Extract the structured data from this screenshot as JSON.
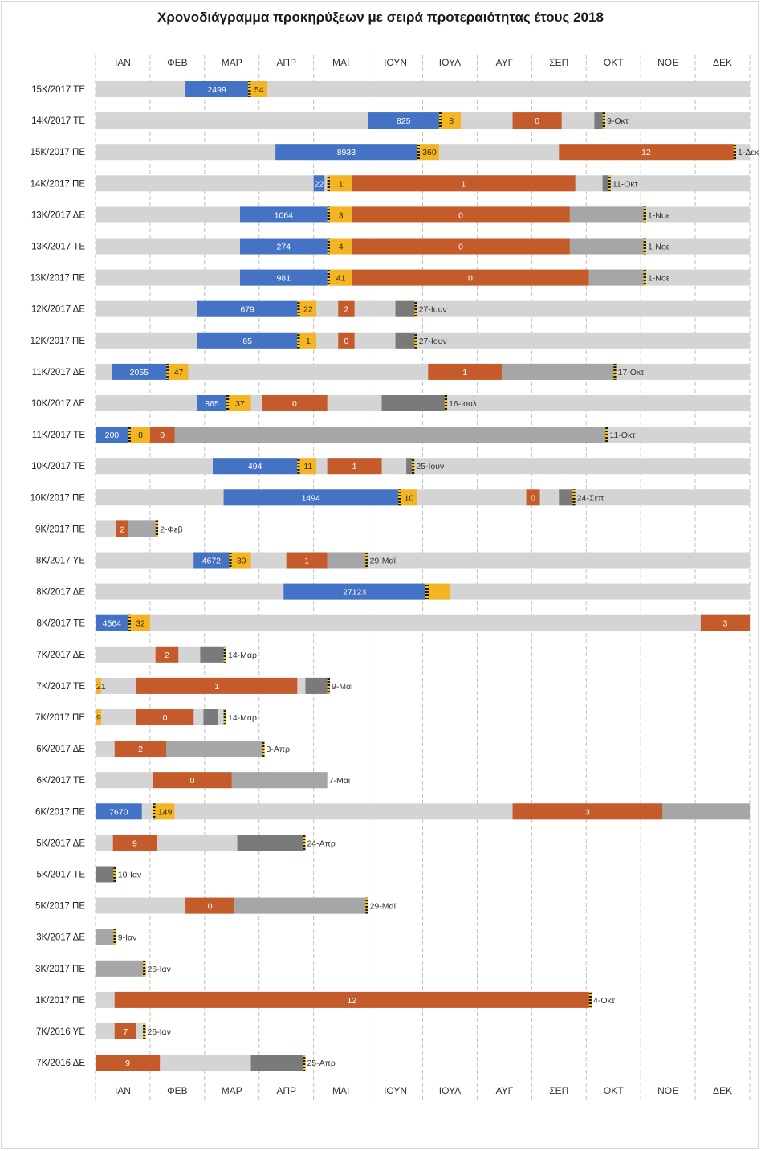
{
  "chart_data": {
    "type": "gantt",
    "title": "Χρονοδιάγραμμα προκηρύξεων με σειρά προτεραιότητας έτους 2018",
    "months": [
      "ΙΑΝ",
      "ΦΕΒ",
      "ΜΑΡ",
      "ΑΠΡ",
      "ΜΑΙ",
      "ΙΟΥΝ",
      "ΙΟΥΛ",
      "ΑΥΓ",
      "ΣΕΠ",
      "ΟΚΤ",
      "ΝΟΕ",
      "ΔΕΚ"
    ],
    "time_unit": "months from start of January 2018",
    "colors": {
      "track": "#d4d4d4",
      "blue": "#4472c4",
      "yellow": "#f4b524",
      "orange": "#c55a2b",
      "lightgray": "#a6a6a6",
      "darkgray": "#7a7a7a",
      "grid": "#bfbfbf"
    },
    "rows": [
      {
        "label": "15Κ/2017 ΤΕ",
        "segments": [
          {
            "s": 1.65,
            "e": 2.8,
            "c": "blue",
            "t": "2499"
          },
          {
            "s": 2.8,
            "e": 2.85,
            "c": "marker"
          },
          {
            "s": 2.85,
            "e": 3.15,
            "c": "yellow",
            "t": "54"
          }
        ],
        "end_text": ""
      },
      {
        "label": "14Κ/2017 ΤΕ",
        "segments": [
          {
            "s": 5.0,
            "e": 6.3,
            "c": "blue",
            "t": "825"
          },
          {
            "s": 6.3,
            "e": 6.35,
            "c": "marker"
          },
          {
            "s": 6.35,
            "e": 6.7,
            "c": "yellow",
            "t": "8"
          },
          {
            "s": 7.65,
            "e": 8.55,
            "c": "orange",
            "t": "0"
          },
          {
            "s": 9.15,
            "e": 9.3,
            "c": "darkgray"
          },
          {
            "s": 9.3,
            "e": 9.35,
            "c": "marker"
          }
        ],
        "end": 9.35,
        "end_text": "9-Οκτ"
      },
      {
        "label": "15Κ/2017 ΠΕ",
        "segments": [
          {
            "s": 3.3,
            "e": 5.9,
            "c": "blue",
            "t": "8933"
          },
          {
            "s": 5.9,
            "e": 5.95,
            "c": "marker"
          },
          {
            "s": 5.95,
            "e": 6.3,
            "c": "yellow",
            "t": "360"
          },
          {
            "s": 8.5,
            "e": 11.7,
            "c": "orange",
            "t": "12"
          },
          {
            "s": 11.7,
            "e": 11.75,
            "c": "marker"
          }
        ],
        "end": 11.75,
        "end_text": "1-Δεκ"
      },
      {
        "label": "14Κ/2017 ΠΕ",
        "segments": [
          {
            "s": 4.0,
            "e": 4.2,
            "c": "blue",
            "t": "22"
          },
          {
            "s": 4.25,
            "e": 4.3,
            "c": "marker"
          },
          {
            "s": 4.3,
            "e": 4.7,
            "c": "yellow",
            "t": "1"
          },
          {
            "s": 4.7,
            "e": 8.8,
            "c": "orange",
            "t": "1"
          },
          {
            "s": 9.3,
            "e": 9.4,
            "c": "darkgray"
          },
          {
            "s": 9.4,
            "e": 9.45,
            "c": "marker"
          }
        ],
        "end": 9.45,
        "end_text": "11-Οκτ"
      },
      {
        "label": "13Κ/2017 ΔΕ",
        "segments": [
          {
            "s": 2.65,
            "e": 4.25,
            "c": "blue",
            "t": "1064"
          },
          {
            "s": 4.25,
            "e": 4.3,
            "c": "marker"
          },
          {
            "s": 4.3,
            "e": 4.7,
            "c": "yellow",
            "t": "3"
          },
          {
            "s": 4.7,
            "e": 8.7,
            "c": "orange",
            "t": "0"
          },
          {
            "s": 8.7,
            "e": 10.05,
            "c": "lightgray"
          },
          {
            "s": 10.05,
            "e": 10.1,
            "c": "marker"
          }
        ],
        "end": 10.1,
        "end_text": "1-Νοε"
      },
      {
        "label": "13Κ/2017 ΤΕ",
        "segments": [
          {
            "s": 2.65,
            "e": 4.25,
            "c": "blue",
            "t": "274"
          },
          {
            "s": 4.25,
            "e": 4.3,
            "c": "marker"
          },
          {
            "s": 4.3,
            "e": 4.7,
            "c": "yellow",
            "t": "4"
          },
          {
            "s": 4.7,
            "e": 8.7,
            "c": "orange",
            "t": "0"
          },
          {
            "s": 8.7,
            "e": 10.05,
            "c": "lightgray"
          },
          {
            "s": 10.05,
            "e": 10.1,
            "c": "marker"
          }
        ],
        "end": 10.1,
        "end_text": "1-Νοε"
      },
      {
        "label": "13Κ/2017 ΠΕ",
        "segments": [
          {
            "s": 2.65,
            "e": 4.25,
            "c": "blue",
            "t": "981"
          },
          {
            "s": 4.25,
            "e": 4.3,
            "c": "marker"
          },
          {
            "s": 4.3,
            "e": 4.7,
            "c": "yellow",
            "t": "41"
          },
          {
            "s": 4.7,
            "e": 9.05,
            "c": "orange",
            "t": "0"
          },
          {
            "s": 9.05,
            "e": 10.05,
            "c": "lightgray"
          },
          {
            "s": 10.05,
            "e": 10.1,
            "c": "marker"
          }
        ],
        "end": 10.1,
        "end_text": "1-Νοε"
      },
      {
        "label": "12Κ/2017 ΔΕ",
        "segments": [
          {
            "s": 1.87,
            "e": 3.7,
            "c": "blue",
            "t": "679"
          },
          {
            "s": 3.7,
            "e": 3.75,
            "c": "marker"
          },
          {
            "s": 3.75,
            "e": 4.05,
            "c": "yellow",
            "t": "22"
          },
          {
            "s": 4.45,
            "e": 4.75,
            "c": "orange",
            "t": "2"
          },
          {
            "s": 5.5,
            "e": 5.85,
            "c": "darkgray"
          },
          {
            "s": 5.85,
            "e": 5.9,
            "c": "marker"
          }
        ],
        "end": 5.9,
        "end_text": "27-Ιουν"
      },
      {
        "label": "12Κ/2017 ΠΕ",
        "segments": [
          {
            "s": 1.87,
            "e": 3.7,
            "c": "blue",
            "t": "65"
          },
          {
            "s": 3.7,
            "e": 3.75,
            "c": "marker"
          },
          {
            "s": 3.75,
            "e": 4.05,
            "c": "yellow",
            "t": "1"
          },
          {
            "s": 4.45,
            "e": 4.75,
            "c": "orange",
            "t": "0"
          },
          {
            "s": 5.5,
            "e": 5.85,
            "c": "darkgray"
          },
          {
            "s": 5.85,
            "e": 5.9,
            "c": "marker"
          }
        ],
        "end": 5.9,
        "end_text": "27-Ιουν"
      },
      {
        "label": "11Κ/2017 ΔΕ",
        "segments": [
          {
            "s": 0.3,
            "e": 1.3,
            "c": "blue",
            "t": "2055"
          },
          {
            "s": 1.3,
            "e": 1.35,
            "c": "marker"
          },
          {
            "s": 1.35,
            "e": 1.7,
            "c": "yellow",
            "t": "47"
          },
          {
            "s": 6.1,
            "e": 7.45,
            "c": "orange",
            "t": "1"
          },
          {
            "s": 7.45,
            "e": 9.5,
            "c": "lightgray"
          },
          {
            "s": 9.5,
            "e": 9.55,
            "c": "marker"
          }
        ],
        "end": 9.55,
        "end_text": "17-Οκτ"
      },
      {
        "label": "10Κ/2017 ΔΕ",
        "segments": [
          {
            "s": 1.87,
            "e": 2.4,
            "c": "blue",
            "t": "865"
          },
          {
            "s": 2.4,
            "e": 2.45,
            "c": "marker"
          },
          {
            "s": 2.45,
            "e": 2.85,
            "c": "yellow",
            "t": "37"
          },
          {
            "s": 3.05,
            "e": 4.25,
            "c": "orange",
            "t": "0"
          },
          {
            "s": 5.25,
            "e": 6.4,
            "c": "darkgray"
          },
          {
            "s": 6.4,
            "e": 6.45,
            "c": "marker"
          }
        ],
        "end": 6.45,
        "end_text": "16-Ιουλ"
      },
      {
        "label": "11Κ/2017 ΤΕ",
        "segments": [
          {
            "s": 0.0,
            "e": 0.6,
            "c": "blue",
            "t": "200"
          },
          {
            "s": 0.6,
            "e": 0.65,
            "c": "marker"
          },
          {
            "s": 0.65,
            "e": 1.0,
            "c": "yellow",
            "t": "8"
          },
          {
            "s": 1.0,
            "e": 1.45,
            "c": "orange",
            "t": "0"
          },
          {
            "s": 1.45,
            "e": 9.35,
            "c": "lightgray"
          },
          {
            "s": 9.35,
            "e": 9.4,
            "c": "marker"
          }
        ],
        "end": 9.4,
        "end_text": "11-Οκτ"
      },
      {
        "label": "10Κ/2017 ΤΕ",
        "segments": [
          {
            "s": 2.15,
            "e": 3.7,
            "c": "blue",
            "t": "494"
          },
          {
            "s": 3.7,
            "e": 3.75,
            "c": "marker"
          },
          {
            "s": 3.75,
            "e": 4.05,
            "c": "yellow",
            "t": "11"
          },
          {
            "s": 4.25,
            "e": 5.25,
            "c": "orange",
            "t": "1"
          },
          {
            "s": 5.7,
            "e": 5.8,
            "c": "darkgray"
          },
          {
            "s": 5.8,
            "e": 5.85,
            "c": "marker"
          }
        ],
        "end": 5.85,
        "end_text": "25-Ιουν"
      },
      {
        "label": "10Κ/2017 ΠΕ",
        "segments": [
          {
            "s": 2.35,
            "e": 5.55,
            "c": "blue",
            "t": "1494"
          },
          {
            "s": 5.55,
            "e": 5.6,
            "c": "marker"
          },
          {
            "s": 5.6,
            "e": 5.9,
            "c": "yellow",
            "t": "10"
          },
          {
            "s": 7.9,
            "e": 8.15,
            "c": "orange",
            "t": "0"
          },
          {
            "s": 8.5,
            "e": 8.75,
            "c": "darkgray"
          },
          {
            "s": 8.75,
            "e": 8.8,
            "c": "marker"
          }
        ],
        "end": 8.8,
        "end_text": "24-Σεπ"
      },
      {
        "label": "9Κ/2017 ΠΕ",
        "segments": [
          {
            "s": 0.38,
            "e": 0.6,
            "c": "orange",
            "t": "2"
          },
          {
            "s": 0.6,
            "e": 1.1,
            "c": "lightgray"
          },
          {
            "s": 1.1,
            "e": 1.15,
            "c": "marker"
          }
        ],
        "track_end": 1.15,
        "end": 1.15,
        "end_text": "2-Φεβ"
      },
      {
        "label": "8Κ/2017 ΥΕ",
        "segments": [
          {
            "s": 1.8,
            "e": 2.45,
            "c": "blue",
            "t": "4672"
          },
          {
            "s": 2.45,
            "e": 2.5,
            "c": "marker"
          },
          {
            "s": 2.5,
            "e": 2.85,
            "c": "yellow",
            "t": "30"
          },
          {
            "s": 3.5,
            "e": 4.25,
            "c": "orange",
            "t": "1"
          },
          {
            "s": 4.25,
            "e": 4.95,
            "c": "lightgray"
          },
          {
            "s": 4.95,
            "e": 5.0,
            "c": "marker"
          }
        ],
        "end": 5.0,
        "end_text": "29-Μαϊ"
      },
      {
        "label": "8Κ/2017 ΔΕ",
        "segments": [
          {
            "s": 3.45,
            "e": 6.05,
            "c": "blue",
            "t": "27123"
          },
          {
            "s": 6.05,
            "e": 6.12,
            "c": "marker"
          },
          {
            "s": 6.12,
            "e": 6.5,
            "c": "yellow"
          }
        ],
        "end_text": ""
      },
      {
        "label": "8Κ/2017 ΤΕ",
        "segments": [
          {
            "s": 0.0,
            "e": 0.6,
            "c": "blue",
            "t": "4564"
          },
          {
            "s": 0.6,
            "e": 0.65,
            "c": "marker"
          },
          {
            "s": 0.65,
            "e": 1.0,
            "c": "yellow",
            "t": "32"
          },
          {
            "s": 11.1,
            "e": 12.0,
            "c": "orange",
            "t": "3"
          }
        ],
        "end_text": ""
      },
      {
        "label": "7Κ/2017 ΔΕ",
        "segments": [
          {
            "s": 1.1,
            "e": 1.52,
            "c": "orange",
            "t": "2"
          },
          {
            "s": 1.92,
            "e": 2.35,
            "c": "darkgray"
          },
          {
            "s": 2.35,
            "e": 2.4,
            "c": "marker"
          }
        ],
        "track_end": 2.4,
        "end": 2.4,
        "end_text": "14-Μαρ"
      },
      {
        "label": "7Κ/2017 ΤΕ",
        "segments": [
          {
            "s": 0.0,
            "e": 0.1,
            "c": "yellow",
            "t": "21"
          },
          {
            "s": 0.75,
            "e": 3.7,
            "c": "orange",
            "t": "1"
          },
          {
            "s": 3.85,
            "e": 4.25,
            "c": "darkgray"
          },
          {
            "s": 4.25,
            "e": 4.3,
            "c": "marker"
          }
        ],
        "track_end": 4.3,
        "end": 4.3,
        "end_text": "9-Μαϊ"
      },
      {
        "label": "7Κ/2017 ΠΕ",
        "segments": [
          {
            "s": 0.0,
            "e": 0.1,
            "c": "yellow",
            "t": "9"
          },
          {
            "s": 0.75,
            "e": 1.8,
            "c": "orange",
            "t": "0"
          },
          {
            "s": 1.98,
            "e": 2.25,
            "c": "darkgray"
          },
          {
            "s": 2.35,
            "e": 2.4,
            "c": "marker"
          }
        ],
        "track_end": 2.4,
        "end": 2.4,
        "end_text": "14-Μαρ"
      },
      {
        "label": "6Κ/2017 ΔΕ",
        "segments": [
          {
            "s": 0.35,
            "e": 1.3,
            "c": "orange",
            "t": "2"
          },
          {
            "s": 1.3,
            "e": 3.05,
            "c": "lightgray"
          },
          {
            "s": 3.05,
            "e": 3.1,
            "c": "marker"
          }
        ],
        "track_end": 3.1,
        "end": 3.1,
        "end_text": "3-Απρ"
      },
      {
        "label": "6Κ/2017 ΤΕ",
        "segments": [
          {
            "s": 1.05,
            "e": 2.5,
            "c": "orange",
            "t": "0"
          },
          {
            "s": 2.5,
            "e": 4.25,
            "c": "lightgray"
          }
        ],
        "track_end": 4.25,
        "end": 4.25,
        "end_text": "7-Μαϊ"
      },
      {
        "label": "6Κ/2017 ΠΕ",
        "segments": [
          {
            "s": 0.0,
            "e": 0.85,
            "c": "blue",
            "t": "7670"
          },
          {
            "s": 1.05,
            "e": 1.1,
            "c": "marker"
          },
          {
            "s": 1.1,
            "e": 1.45,
            "c": "yellow",
            "t": "149"
          },
          {
            "s": 7.65,
            "e": 10.4,
            "c": "orange",
            "t": "3"
          },
          {
            "s": 10.4,
            "e": 12.0,
            "c": "lightgray"
          }
        ],
        "end_text": ""
      },
      {
        "label": "5Κ/2017 ΔΕ",
        "segments": [
          {
            "s": 0.32,
            "e": 1.12,
            "c": "orange",
            "t": "9"
          },
          {
            "s": 2.6,
            "e": 3.8,
            "c": "darkgray"
          },
          {
            "s": 3.8,
            "e": 3.85,
            "c": "marker"
          }
        ],
        "track_end": 3.85,
        "end": 3.85,
        "end_text": "24-Απρ"
      },
      {
        "label": "5Κ/2017 ΤΕ",
        "segments": [
          {
            "s": 0.0,
            "e": 0.33,
            "c": "darkgray"
          },
          {
            "s": 0.33,
            "e": 0.38,
            "c": "marker"
          }
        ],
        "track_end": 0.38,
        "end": 0.38,
        "end_text": "10-Ιαν"
      },
      {
        "label": "5Κ/2017 ΠΕ",
        "segments": [
          {
            "s": 1.65,
            "e": 2.55,
            "c": "orange",
            "t": "0"
          },
          {
            "s": 2.55,
            "e": 4.95,
            "c": "lightgray"
          },
          {
            "s": 4.95,
            "e": 5.0,
            "c": "marker"
          }
        ],
        "track_end": 5.0,
        "end": 5.0,
        "end_text": "29-Μαϊ"
      },
      {
        "label": "3Κ/2017 ΔΕ",
        "segments": [
          {
            "s": 0.0,
            "e": 0.33,
            "c": "lightgray"
          },
          {
            "s": 0.33,
            "e": 0.38,
            "c": "marker"
          }
        ],
        "track_end": 0.38,
        "end": 0.38,
        "end_text": "9-Ιαν"
      },
      {
        "label": "3Κ/2017 ΠΕ",
        "segments": [
          {
            "s": 0.0,
            "e": 0.87,
            "c": "lightgray"
          },
          {
            "s": 0.87,
            "e": 0.92,
            "c": "marker"
          }
        ],
        "track_end": 0.92,
        "end": 0.92,
        "end_text": "26-Ιαν"
      },
      {
        "label": "1Κ/2017 ΠΕ",
        "segments": [
          {
            "s": 0.35,
            "e": 9.05,
            "c": "orange",
            "t": "12"
          },
          {
            "s": 9.05,
            "e": 9.1,
            "c": "marker"
          }
        ],
        "track_end": 9.1,
        "end": 9.1,
        "end_text": "4-Οκτ"
      },
      {
        "label": "7Κ/2016 ΥΕ",
        "segments": [
          {
            "s": 0.35,
            "e": 0.75,
            "c": "orange",
            "t": "7"
          },
          {
            "s": 0.87,
            "e": 0.92,
            "c": "marker"
          }
        ],
        "track_end": 0.92,
        "end": 0.92,
        "end_text": "26-Ιαν"
      },
      {
        "label": "7Κ/2016 ΔΕ",
        "segments": [
          {
            "s": 0.0,
            "e": 1.18,
            "c": "orange",
            "t": "9"
          },
          {
            "s": 2.85,
            "e": 3.8,
            "c": "darkgray"
          },
          {
            "s": 3.8,
            "e": 3.85,
            "c": "marker"
          }
        ],
        "track_end": 3.85,
        "end": 3.85,
        "end_text": "25-Απρ"
      }
    ]
  }
}
